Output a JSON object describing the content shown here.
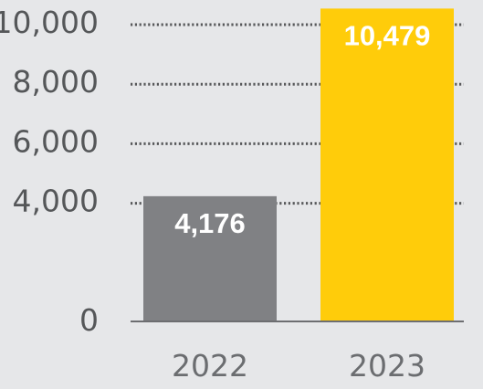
{
  "chart_data": {
    "type": "bar",
    "title": "",
    "xlabel": "",
    "ylabel": "",
    "categories": [
      "2022",
      "2023"
    ],
    "values": [
      4176,
      10479
    ],
    "value_labels": [
      "4,176",
      "10,479"
    ],
    "bar_colors": [
      "#808184",
      "#ffcc0a"
    ],
    "ylim": [
      0,
      10000
    ],
    "yticks": [
      0,
      4000,
      6000,
      8000,
      10000
    ],
    "ytick_labels": [
      "0",
      "4,000",
      "6,000",
      "8,000",
      "10,000"
    ],
    "grid": true,
    "grid_style": "dotted",
    "legend": "none"
  },
  "colors": {
    "background": "#e6e7e9",
    "axis": "#6d6e71",
    "gridline": "#58595b",
    "tick_text": "#555759",
    "category_text": "#6b6d70",
    "value_text": "#ffffff"
  }
}
